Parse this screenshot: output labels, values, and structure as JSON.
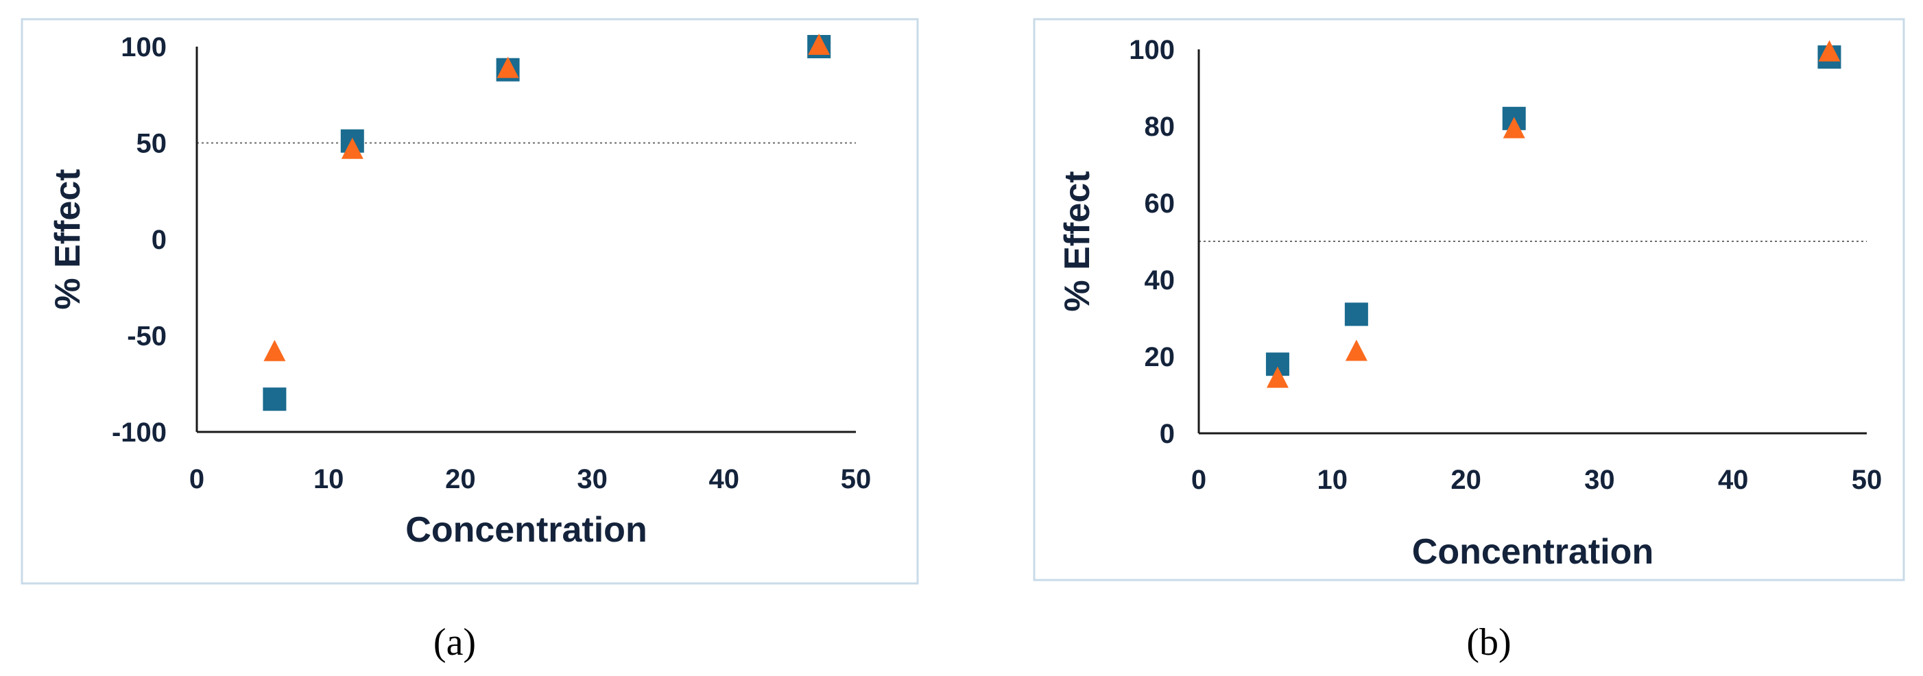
{
  "chart_data": [
    {
      "type": "scatter",
      "panel_label": "(a)",
      "xlabel": "Concentration",
      "ylabel": "% Effect",
      "xlim": [
        0,
        50
      ],
      "ylim": [
        -100,
        100
      ],
      "xticks": [
        "0",
        "10",
        "20",
        "30",
        "40",
        "50"
      ],
      "yticks": [
        "100",
        "50",
        "0",
        "-50",
        "-100"
      ],
      "reference_line": {
        "y": 50,
        "style": "dotted"
      },
      "grid": false,
      "legend": "none",
      "series": [
        {
          "marker": "square",
          "color": "#1a6b8f",
          "x": [
            5.9,
            11.8,
            23.6,
            47.2
          ],
          "y": [
            -83,
            51,
            88,
            100
          ]
        },
        {
          "marker": "triangle",
          "color": "#fb6a1d",
          "x": [
            5.9,
            11.8,
            23.6,
            47.2
          ],
          "y": [
            -59,
            46,
            88,
            100
          ]
        }
      ]
    },
    {
      "type": "scatter",
      "panel_label": "(b)",
      "xlabel": "Concentration",
      "ylabel": "% Effect",
      "xlim": [
        0,
        50
      ],
      "ylim": [
        0,
        100
      ],
      "xticks": [
        "0",
        "10",
        "20",
        "30",
        "40",
        "50"
      ],
      "yticks": [
        "100",
        "80",
        "60",
        "40",
        "20",
        "0"
      ],
      "reference_line": {
        "y": 50,
        "style": "dotted"
      },
      "grid": false,
      "legend": "none",
      "series": [
        {
          "marker": "square",
          "color": "#1a6b8f",
          "x": [
            5.9,
            11.8,
            23.6,
            47.2
          ],
          "y": [
            18,
            31,
            82,
            98
          ]
        },
        {
          "marker": "triangle",
          "color": "#fb6a1d",
          "x": [
            5.9,
            11.8,
            23.6,
            47.2
          ],
          "y": [
            14,
            21,
            79,
            99
          ]
        }
      ]
    }
  ]
}
